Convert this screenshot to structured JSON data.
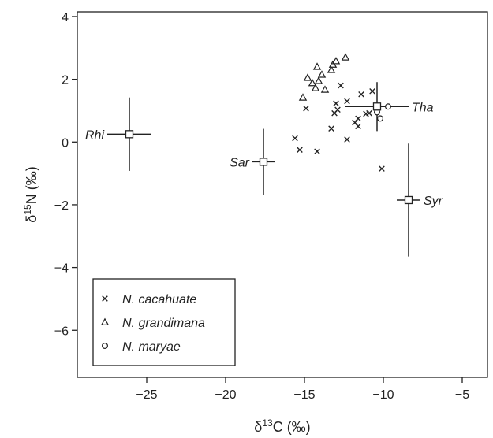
{
  "chart_data": {
    "type": "scatter",
    "xlabel": {
      "prefix": "δ",
      "sup": "13",
      "suffix": "C (‰)"
    },
    "ylabel": {
      "prefix": "δ",
      "sup": "15",
      "suffix": "N (‰)"
    },
    "xlim": [
      -29.4,
      -3.4
    ],
    "ylim": [
      -7.5,
      4.15
    ],
    "xticks": [
      -25,
      -20,
      -15,
      -10,
      -5
    ],
    "yticks": [
      4,
      2,
      0,
      -2,
      -4,
      -6
    ],
    "xtick_labels": [
      "−25",
      "−20",
      "−15",
      "−10",
      "−5"
    ],
    "ytick_labels": [
      "4",
      "2",
      "0",
      "−2",
      "−4",
      "−6"
    ],
    "grid": false,
    "legend_position": "bottom-left",
    "series": [
      {
        "name": "N. cacahuate",
        "marker": "x",
        "points": [
          [
            -15.6,
            0.12
          ],
          [
            -15.3,
            -0.25
          ],
          [
            -14.9,
            1.07
          ],
          [
            -14.2,
            -0.3
          ],
          [
            -13.3,
            0.43
          ],
          [
            -13.1,
            0.92
          ],
          [
            -13.0,
            1.23
          ],
          [
            -12.9,
            1.03
          ],
          [
            -12.7,
            1.8
          ],
          [
            -12.3,
            1.3
          ],
          [
            -12.3,
            0.08
          ],
          [
            -11.8,
            0.62
          ],
          [
            -11.6,
            0.5
          ],
          [
            -11.6,
            0.75
          ],
          [
            -11.4,
            1.52
          ],
          [
            -11.1,
            0.9
          ],
          [
            -10.9,
            0.92
          ],
          [
            -10.7,
            1.62
          ],
          [
            -10.1,
            -0.85
          ]
        ]
      },
      {
        "name": "N. grandimana",
        "marker": "triangle",
        "points": [
          [
            -15.1,
            1.42
          ],
          [
            -14.8,
            2.05
          ],
          [
            -14.5,
            1.88
          ],
          [
            -14.3,
            1.72
          ],
          [
            -14.2,
            2.4
          ],
          [
            -14.1,
            1.95
          ],
          [
            -13.9,
            2.15
          ],
          [
            -13.7,
            1.67
          ],
          [
            -13.3,
            2.3
          ],
          [
            -13.2,
            2.47
          ],
          [
            -13.0,
            2.58
          ],
          [
            -12.4,
            2.7
          ]
        ]
      },
      {
        "name": "N. maryae",
        "marker": "circle",
        "points": [
          [
            -10.4,
            0.95
          ],
          [
            -10.2,
            0.75
          ],
          [
            -9.7,
            1.13
          ]
        ]
      }
    ],
    "means": [
      {
        "label": "Rhi",
        "x": -26.1,
        "y": 0.25,
        "xerr": 1.4,
        "yerr": 1.17,
        "label_side": "left"
      },
      {
        "label": "Sar",
        "x": -17.6,
        "y": -0.63,
        "xerr": 0.7,
        "yerr": 1.05,
        "label_side": "left"
      },
      {
        "label": "Tha",
        "x": -10.4,
        "y": 1.13,
        "xerr": 2.0,
        "yerr": 0.78,
        "label_side": "right"
      },
      {
        "label": "Syr",
        "x": -8.4,
        "y": -1.85,
        "xerr": 0.75,
        "yerr": 1.8,
        "label_side": "right"
      }
    ]
  }
}
